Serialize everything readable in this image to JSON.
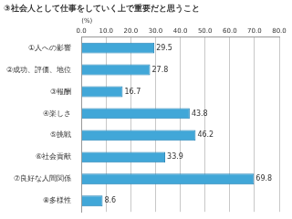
{
  "chart_data": {
    "type": "bar",
    "orientation": "horizontal",
    "title": "③社会人として仕事をしていく上で重要だと思うこと",
    "xlabel": "(%)",
    "categories": [
      "①人への影響",
      "②成功、評価、地位",
      "③報酬",
      "④楽しさ",
      "⑤挑戦",
      "⑥社会貢献",
      "⑦良好な人間関係",
      "⑧多様性"
    ],
    "values": [
      29.5,
      27.8,
      16.7,
      43.8,
      46.2,
      33.9,
      69.8,
      8.6
    ],
    "color": "#41a7d8",
    "xlim": [
      0,
      80
    ],
    "xticks": [
      {
        "value": 0,
        "label": "0.0"
      },
      {
        "value": 10,
        "label": "10.0"
      },
      {
        "value": 20,
        "label": "20.0"
      },
      {
        "value": 30,
        "label": "30.0"
      },
      {
        "value": 40,
        "label": "40.0"
      },
      {
        "value": 50,
        "label": "50.0"
      },
      {
        "value": 60,
        "label": "60.0"
      },
      {
        "value": 70,
        "label": "70.0"
      },
      {
        "value": 80,
        "label": "80.0"
      }
    ],
    "grid": true,
    "data_labels": true
  }
}
